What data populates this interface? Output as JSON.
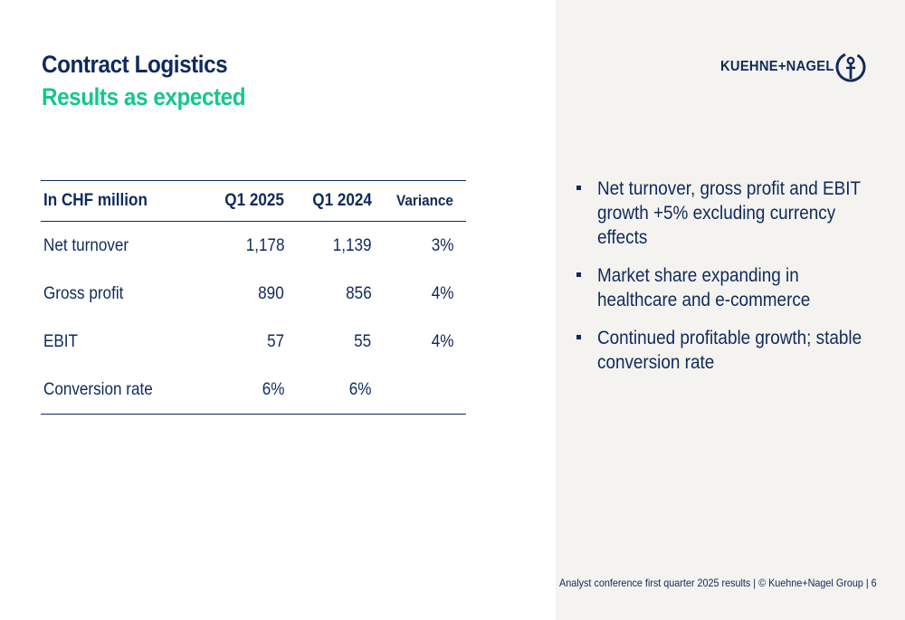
{
  "header": {
    "title": "Contract Logistics",
    "subtitle": "Results as expected"
  },
  "logo": {
    "text": "KUEHNE+NAGEL",
    "icon": "anchor-icon"
  },
  "table": {
    "headers": [
      "In CHF million",
      "Q1 2025",
      "Q1 2024",
      "Variance"
    ],
    "rows": [
      [
        "Net turnover",
        "1,178",
        "1,139",
        "3%"
      ],
      [
        "Gross profit",
        "890",
        "856",
        "4%"
      ],
      [
        "EBIT",
        "57",
        "55",
        "4%"
      ],
      [
        "Conversion rate",
        "6%",
        "6%",
        ""
      ]
    ]
  },
  "bullets": [
    "Net turnover, gross profit and EBIT growth +5% excluding currency effects",
    "Market share expanding in healthcare and e-commerce",
    "Continued profitable growth; stable conversion rate"
  ],
  "footer": {
    "text": "Analyst conference first quarter 2025 results | © Kuehne+Nagel Group | 6"
  },
  "colors": {
    "navy": "#0f2a5c",
    "green": "#14c78c",
    "panel_background": "#f4f3ef"
  }
}
